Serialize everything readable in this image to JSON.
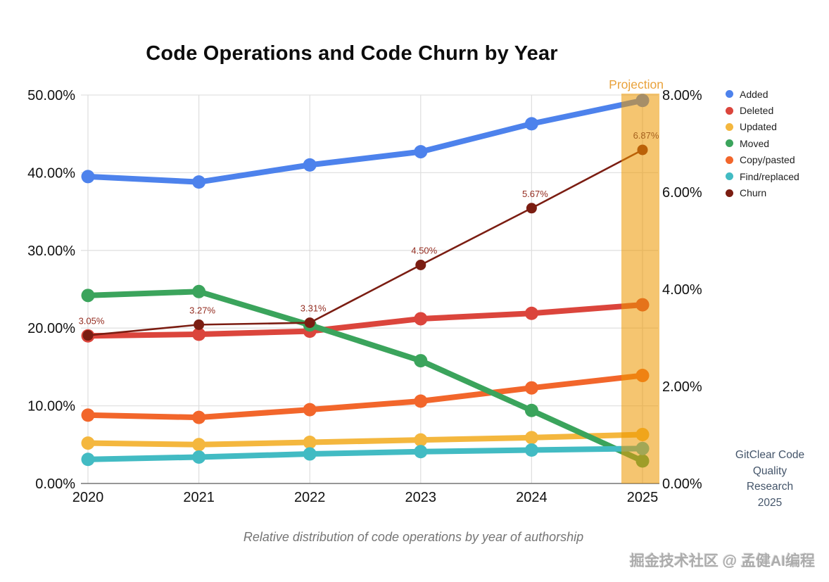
{
  "title": "Code Operations and Code Churn by Year",
  "caption": "Relative distribution of code operations by year of authorship",
  "attribution": {
    "lines": [
      "GitClear Code",
      "Quality",
      "Research",
      "2025"
    ]
  },
  "watermark": "掘金技术社区 @ 孟健AI编程",
  "chart_data": {
    "type": "line",
    "title": "Code Operations and Code Churn by Year",
    "subtitle": "Relative distribution of code operations by year of authorship",
    "x_categories": [
      "2020",
      "2021",
      "2022",
      "2023",
      "2024",
      "2025"
    ],
    "left_axis": {
      "label": "",
      "min": 0,
      "max": 50,
      "ticks": [
        "0.00%",
        "10.00%",
        "20.00%",
        "30.00%",
        "40.00%",
        "50.00%"
      ],
      "tick_values": [
        0,
        10,
        20,
        30,
        40,
        50
      ]
    },
    "right_axis": {
      "label": "",
      "min": 0,
      "max": 8,
      "ticks": [
        "0.00%",
        "2.00%",
        "4.00%",
        "6.00%",
        "8.00%"
      ],
      "tick_values": [
        0,
        2,
        4,
        6,
        8
      ]
    },
    "grid": "on",
    "legend_position": "right",
    "series": [
      {
        "name": "Added",
        "color": "#4D82EC",
        "axis": "left",
        "values": [
          39.5,
          38.8,
          41.0,
          42.7,
          46.3,
          49.3
        ]
      },
      {
        "name": "Deleted",
        "color": "#DB453C",
        "axis": "left",
        "values": [
          19.0,
          19.2,
          19.6,
          21.2,
          21.9,
          23.0
        ]
      },
      {
        "name": "Updated",
        "color": "#F4B73E",
        "axis": "left",
        "values": [
          5.2,
          5.0,
          5.3,
          5.6,
          5.9,
          6.3
        ]
      },
      {
        "name": "Moved",
        "color": "#3BA45C",
        "axis": "left",
        "values": [
          24.2,
          24.7,
          20.4,
          15.8,
          9.4,
          2.9
        ]
      },
      {
        "name": "Copy/pasted",
        "color": "#F2662B",
        "axis": "left",
        "values": [
          8.8,
          8.5,
          9.5,
          10.6,
          12.3,
          13.9
        ]
      },
      {
        "name": "Find/replaced",
        "color": "#42BBC3",
        "axis": "left",
        "values": [
          3.1,
          3.4,
          3.8,
          4.1,
          4.3,
          4.5
        ]
      },
      {
        "name": "Churn",
        "color": "#7B1D12",
        "axis": "right",
        "values": [
          3.05,
          3.27,
          3.31,
          4.5,
          5.67,
          6.87
        ],
        "point_labels": [
          "3.05%",
          "3.27%",
          "3.31%",
          "4.50%",
          "5.67%",
          "6.87%"
        ],
        "point_label_color": "#942D21",
        "last_point_label_color": "#A6621F"
      }
    ],
    "projection": {
      "label": "Projection",
      "label_color": "#E9A23B",
      "band_color": "#ED9700",
      "band_opacity": 0.56,
      "covers_category": "2025"
    }
  }
}
